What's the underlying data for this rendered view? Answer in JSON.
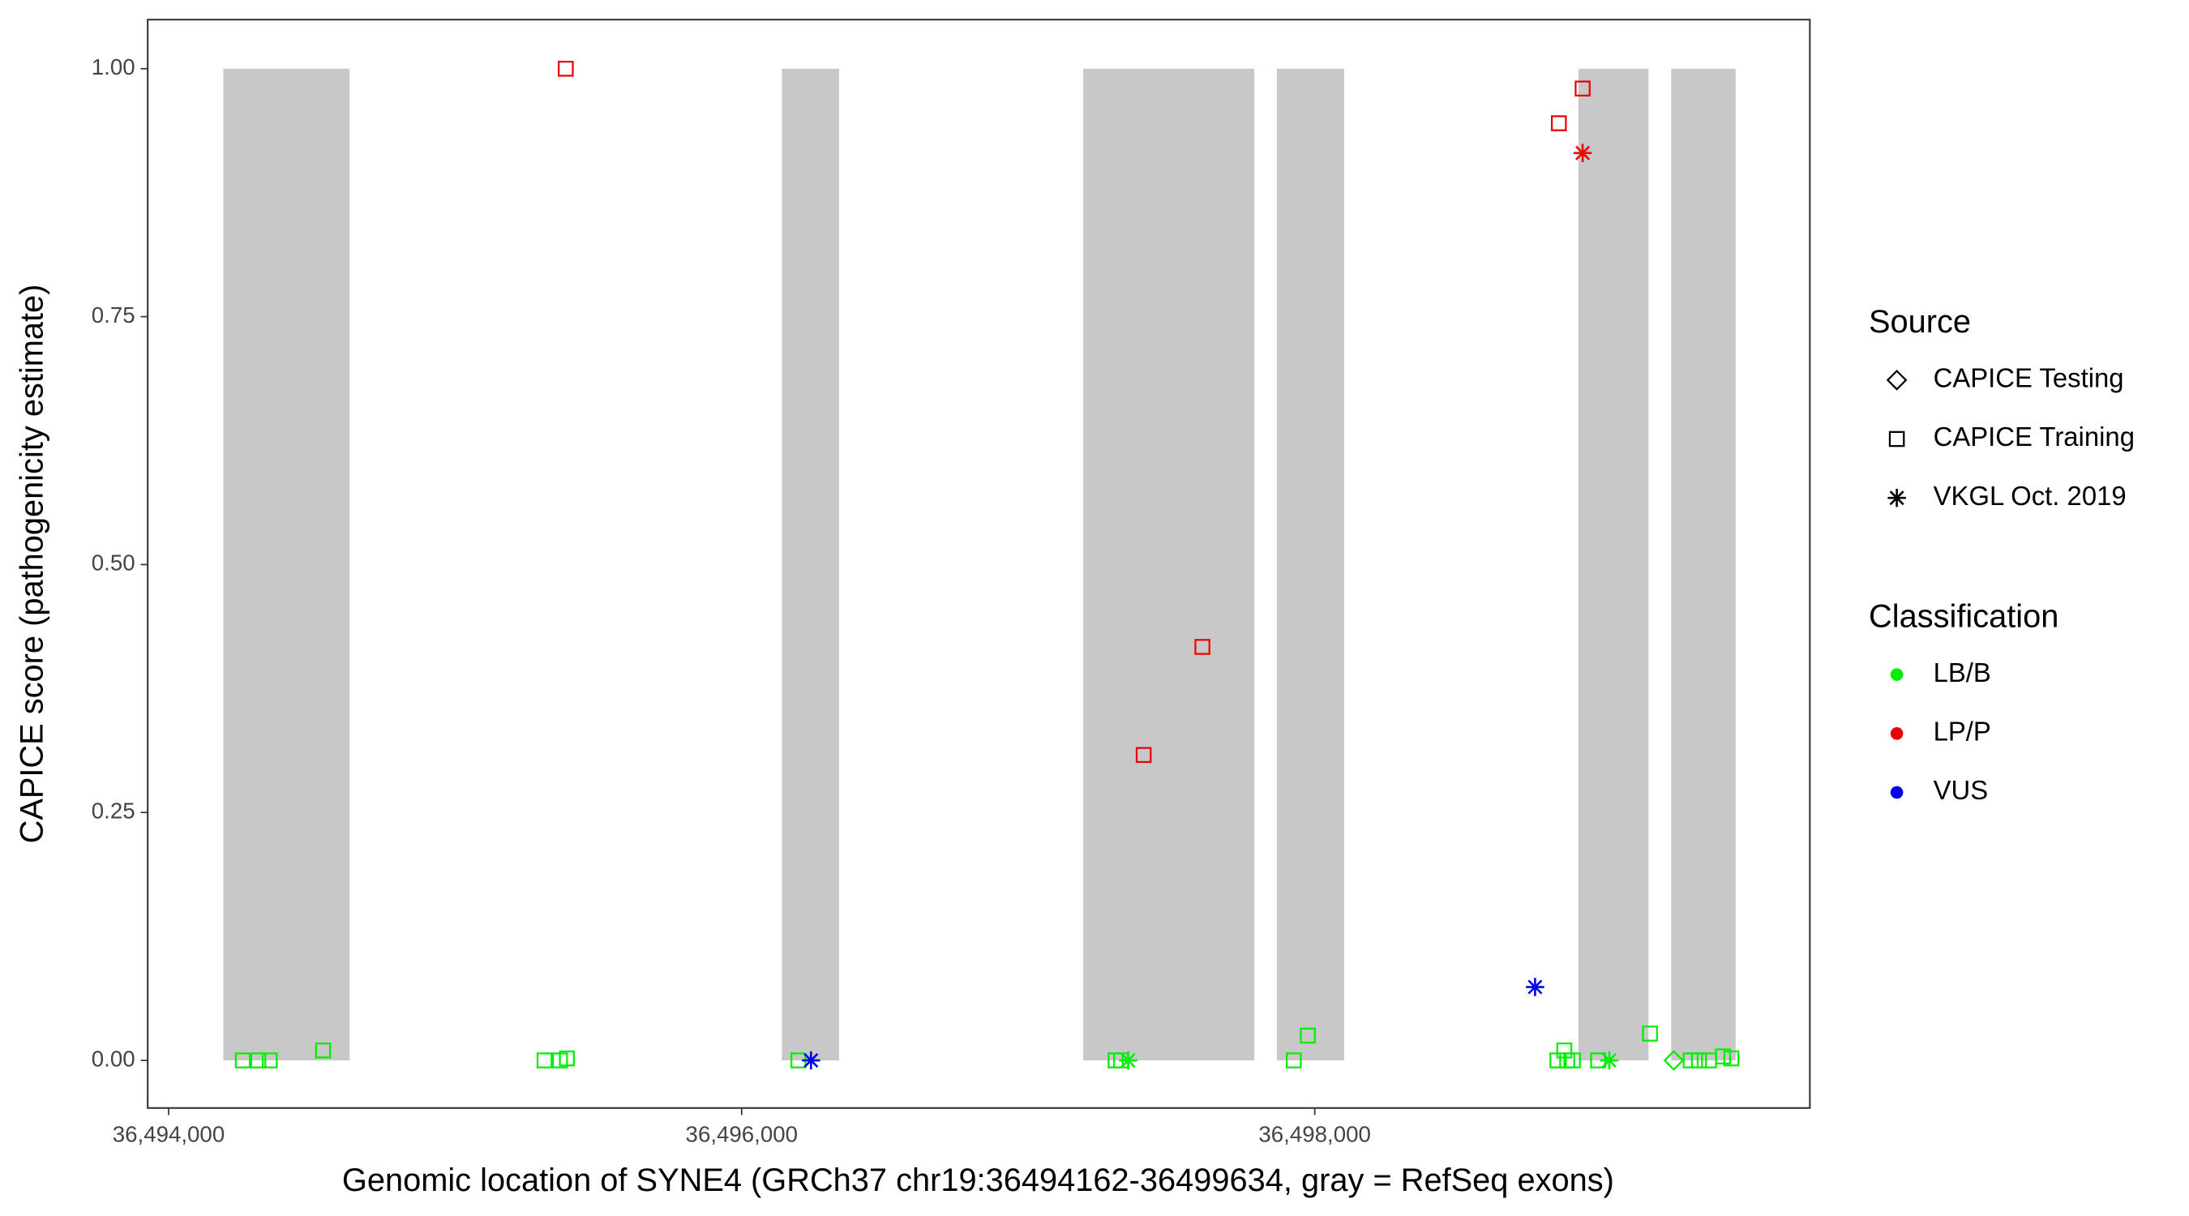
{
  "chart_data": {
    "type": "scatter",
    "x_label": "Genomic location of SYNE4 (GRCh37 chr19:36494162-36499634, gray = RefSeq exons)",
    "y_label": "CAPICE score (pathogenicity estimate)",
    "xlim": [
      36493927,
      36499728
    ],
    "ylim": [
      -0.048,
      1.0495
    ],
    "xticks": [
      {
        "value": 36494000,
        "label": "36,494,000"
      },
      {
        "value": 36496000,
        "label": "36,496,000"
      },
      {
        "value": 36498000,
        "label": "36,498,000"
      }
    ],
    "yticks": [
      {
        "value": 0,
        "label": "0.00"
      },
      {
        "value": 0.25,
        "label": "0.25"
      },
      {
        "value": 0.5,
        "label": "0.50"
      },
      {
        "value": 0.75,
        "label": "0.75"
      },
      {
        "value": 1,
        "label": "1.00"
      }
    ],
    "exons": {
      "starts": [
        36494191,
        36496140,
        36497192,
        36497868,
        36498920,
        36499244
      ],
      "ends": [
        36494632,
        36496340,
        36497789,
        36498103,
        36499165,
        36499469
      ],
      "range": [
        0,
        1
      ],
      "color": "#c8c8c8"
    },
    "source_legend": {
      "title": "Source",
      "items": [
        {
          "name": "CAPICE Testing",
          "shape": "diamond"
        },
        {
          "name": "CAPICE Training",
          "shape": "square"
        },
        {
          "name": "VKGL Oct. 2019",
          "shape": "asterisk"
        }
      ]
    },
    "classification_legend": {
      "title": "Classification",
      "items": [
        {
          "name": "LB/B",
          "color": "#00ee00"
        },
        {
          "name": "LP/P",
          "color": "#ee0000"
        },
        {
          "name": "VUS",
          "color": "#0000ee"
        }
      ]
    },
    "series": [
      {
        "source": "CAPICE Training",
        "classification": "LB/B",
        "x": [
          36494259,
          36494313,
          36494353,
          36494539,
          36495312,
          36495366,
          36495390,
          36496198,
          36497305,
          36497324,
          36497927,
          36497976,
          36498847,
          36498871,
          36498881,
          36498901,
          36498989,
          36499170,
          36499312,
          36499341,
          36499376,
          36499425,
          36499454
        ],
        "values": [
          0,
          0,
          0,
          0.01,
          0,
          0,
          0.002,
          0,
          0,
          0,
          0,
          0.025,
          0,
          0.01,
          0,
          0,
          0,
          0.027,
          0,
          0,
          0,
          0.004,
          0.002
        ]
      },
      {
        "source": "CAPICE Testing",
        "classification": "LB/B",
        "x": [
          36499253
        ],
        "values": [
          0
        ]
      },
      {
        "source": "VKGL Oct. 2019",
        "classification": "LB/B",
        "x": [
          36497349,
          36499028
        ],
        "values": [
          0,
          0
        ]
      },
      {
        "source": "CAPICE Training",
        "classification": "LP/P",
        "x": [
          36495386,
          36497403,
          36497608,
          36498852,
          36498935
        ],
        "values": [
          1.0,
          0.308,
          0.417,
          0.945,
          0.98
        ]
      },
      {
        "source": "VKGL Oct. 2019",
        "classification": "LP/P",
        "x": [
          36498935
        ],
        "values": [
          0.915
        ]
      },
      {
        "source": "VKGL Oct. 2019",
        "classification": "VUS",
        "x": [
          36496242,
          36498769
        ],
        "values": [
          0,
          0.074
        ]
      }
    ]
  }
}
